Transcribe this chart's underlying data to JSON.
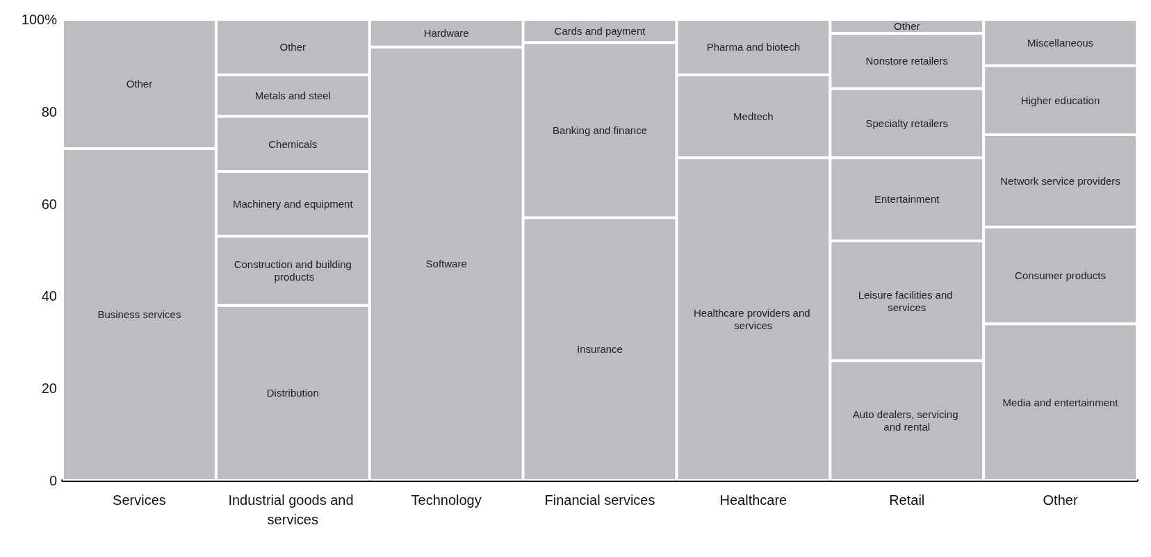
{
  "chart_data": {
    "type": "bar",
    "stacked": true,
    "categories": [
      "Services",
      "Industrial goods and services",
      "Technology",
      "Financial services",
      "Healthcare",
      "Retail",
      "Other"
    ],
    "ylim": [
      0,
      100
    ],
    "yticks": [
      0,
      20,
      40,
      60,
      80,
      {
        "value": 100,
        "label": "100%"
      }
    ],
    "grid": false,
    "series": [
      {
        "color": "#bcbdc0",
        "values": [
          72,
          38,
          94,
          57,
          70,
          26,
          34
        ],
        "value_labels": [
          "Business services",
          "Distribution",
          "Software",
          "Insurance",
          "Healthcare providers and services",
          "Auto dealers, servicing and rental",
          "Media and entertainment"
        ]
      },
      {
        "color": "#bcbdc0",
        "values": [
          28,
          15,
          6,
          38,
          18,
          26,
          21
        ],
        "value_labels": [
          "Other",
          "Construction and building products",
          "Hardware",
          "Banking and finance",
          "Medtech",
          "Leisure facilities and services",
          "Consumer products"
        ]
      },
      {
        "color": "#bcbdc0",
        "values": [
          null,
          14,
          null,
          5,
          12,
          18,
          20
        ],
        "value_labels": [
          null,
          "Machinery and equipment",
          null,
          "Cards and payment",
          "Pharma and biotech",
          "Entertainment",
          "Network service providers"
        ]
      },
      {
        "color": "#bcbdc0",
        "values": [
          null,
          12,
          null,
          null,
          null,
          15,
          15
        ],
        "value_labels": [
          null,
          "Chemicals",
          null,
          null,
          null,
          "Specialty retailers",
          "Higher education"
        ]
      },
      {
        "color": "#bcbdc0",
        "values": [
          null,
          9,
          null,
          null,
          null,
          12,
          10
        ],
        "value_labels": [
          null,
          "Metals and steel",
          null,
          null,
          null,
          "Nonstore retailers",
          "Miscellaneous"
        ]
      },
      {
        "color": "#bcbdc0",
        "values": [
          null,
          12,
          null,
          null,
          null,
          3,
          null
        ],
        "value_labels": [
          null,
          "Other",
          null,
          null,
          null,
          "Other",
          null
        ]
      }
    ]
  }
}
